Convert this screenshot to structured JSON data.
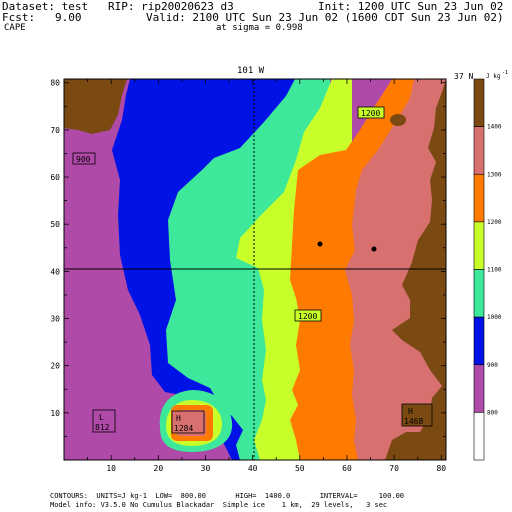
{
  "header": {
    "dataset": "Dataset: test   RIP: rip20020623 d3",
    "init": "Init: 1200 UTC Sun 23 Jun 02",
    "fcst": "Fcst:   9.00",
    "valid": "Valid: 2100 UTC Sun 23 Jun 02 (1600 CDT Sun 23 Jun 02)",
    "field": "CAPE",
    "sigma": "at sigma = 0.998"
  },
  "map": {
    "top_label_left": "101 W",
    "top_label_right": "37 N",
    "x_ticks": [
      "10",
      "20",
      "30",
      "40",
      "50",
      "60",
      "70",
      "80"
    ],
    "y_ticks": [
      "10",
      "20",
      "30",
      "40",
      "50",
      "60",
      "70",
      "80"
    ],
    "contour_labels": [
      "900",
      "1200",
      "1200"
    ],
    "extrema": [
      {
        "type": "L",
        "value": "812"
      },
      {
        "type": "H",
        "value": "1284"
      },
      {
        "type": "H",
        "value": "1468"
      }
    ]
  },
  "colorbar": {
    "unit": "J kg",
    "unit_exp": "-1",
    "labels": [
      "1400",
      "1300",
      "1200",
      "1100",
      "1000",
      "900",
      "800"
    ],
    "colors": [
      "#7a4a12",
      "#d97070",
      "#ff7a00",
      "#c8ff2a",
      "#3de89b",
      "#0012e6",
      "#b04aa8",
      "#ffffff"
    ]
  },
  "footer": {
    "line1": "CONTOURS:  UNITS=J kg-1  LOW=  800.00       HIGH=  1400.0       INTERVAL=     100.00",
    "line2": "Model info: V3.5.0 No Cumulus Blackadar  Simple ice    1 km,  29 levels,   3 sec"
  }
}
